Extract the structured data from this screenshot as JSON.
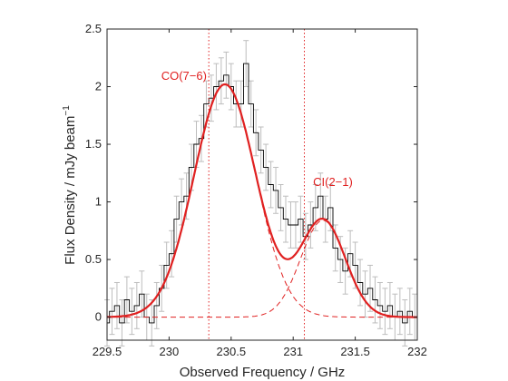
{
  "chart_data": {
    "type": "line",
    "xlabel": "Observed Frequency / GHz",
    "ylabel": "Flux Density / mJy beam",
    "ylabel_superscript": "−1",
    "xlim": [
      229.5,
      232.0
    ],
    "ylim": [
      -0.2,
      2.5
    ],
    "xticks": [
      229.5,
      230,
      230.5,
      231,
      231.5,
      232
    ],
    "xtick_labels": [
      "229.5",
      "230",
      "230.5",
      "231",
      "231.5",
      "232"
    ],
    "yticks": [
      0,
      0.5,
      1,
      1.5,
      2,
      2.5
    ],
    "ytick_labels": [
      "0",
      "0.5",
      "1",
      "1.5",
      "2",
      "2.5"
    ],
    "grid": false,
    "colors": {
      "data": "#000000",
      "errors": "#bdbdbd",
      "fit": "#e02020",
      "components": "#e02020",
      "lines": "#e02020"
    },
    "annotations": [
      {
        "text": "CO(7−6)",
        "x": 230.12,
        "y": 2.06
      },
      {
        "text": "CI(2−1)",
        "x": 231.32,
        "y": 1.14
      }
    ],
    "reference_lines_x": [
      230.32,
      231.09
    ],
    "fit_components": [
      {
        "name": "CO(7−6)",
        "center": 230.45,
        "amplitude": 2.02,
        "sigma": 0.25
      },
      {
        "name": "CI(2−1)",
        "center": 231.24,
        "amplitude": 0.84,
        "sigma": 0.18
      }
    ],
    "series": [
      {
        "style": "step",
        "x": [
          229.5,
          229.54,
          229.58,
          229.62,
          229.66,
          229.7,
          229.74,
          229.78,
          229.82,
          229.86,
          229.9,
          229.94,
          229.98,
          230.02,
          230.06,
          230.1,
          230.14,
          230.18,
          230.22,
          230.26,
          230.3,
          230.34,
          230.38,
          230.42,
          230.46,
          230.5,
          230.54,
          230.58,
          230.62,
          230.66,
          230.7,
          230.74,
          230.78,
          230.82,
          230.86,
          230.9,
          230.94,
          230.98,
          231.02,
          231.06,
          231.1,
          231.14,
          231.18,
          231.22,
          231.26,
          231.3,
          231.34,
          231.38,
          231.42,
          231.46,
          231.5,
          231.54,
          231.58,
          231.62,
          231.66,
          231.7,
          231.74,
          231.78,
          231.82,
          231.86,
          231.9,
          231.94,
          231.98
        ],
        "y": [
          -0.05,
          0.05,
          0.1,
          -0.05,
          0.15,
          0.05,
          0.1,
          0.2,
          0.0,
          -0.05,
          0.1,
          0.25,
          0.45,
          0.55,
          0.85,
          1.0,
          1.05,
          1.3,
          1.5,
          1.55,
          1.85,
          1.9,
          2.0,
          2.05,
          2.1,
          2.0,
          1.85,
          1.85,
          2.2,
          1.85,
          1.6,
          1.45,
          1.3,
          1.15,
          1.1,
          0.95,
          0.85,
          0.8,
          0.8,
          0.85,
          0.7,
          0.8,
          0.95,
          1.05,
          0.85,
          0.95,
          0.6,
          0.5,
          0.4,
          0.55,
          0.45,
          0.3,
          0.2,
          0.25,
          0.15,
          0.1,
          0.05,
          0.1,
          0.0,
          0.05,
          -0.05,
          0.05,
          0.0
        ],
        "yerr": 0.2
      }
    ]
  }
}
